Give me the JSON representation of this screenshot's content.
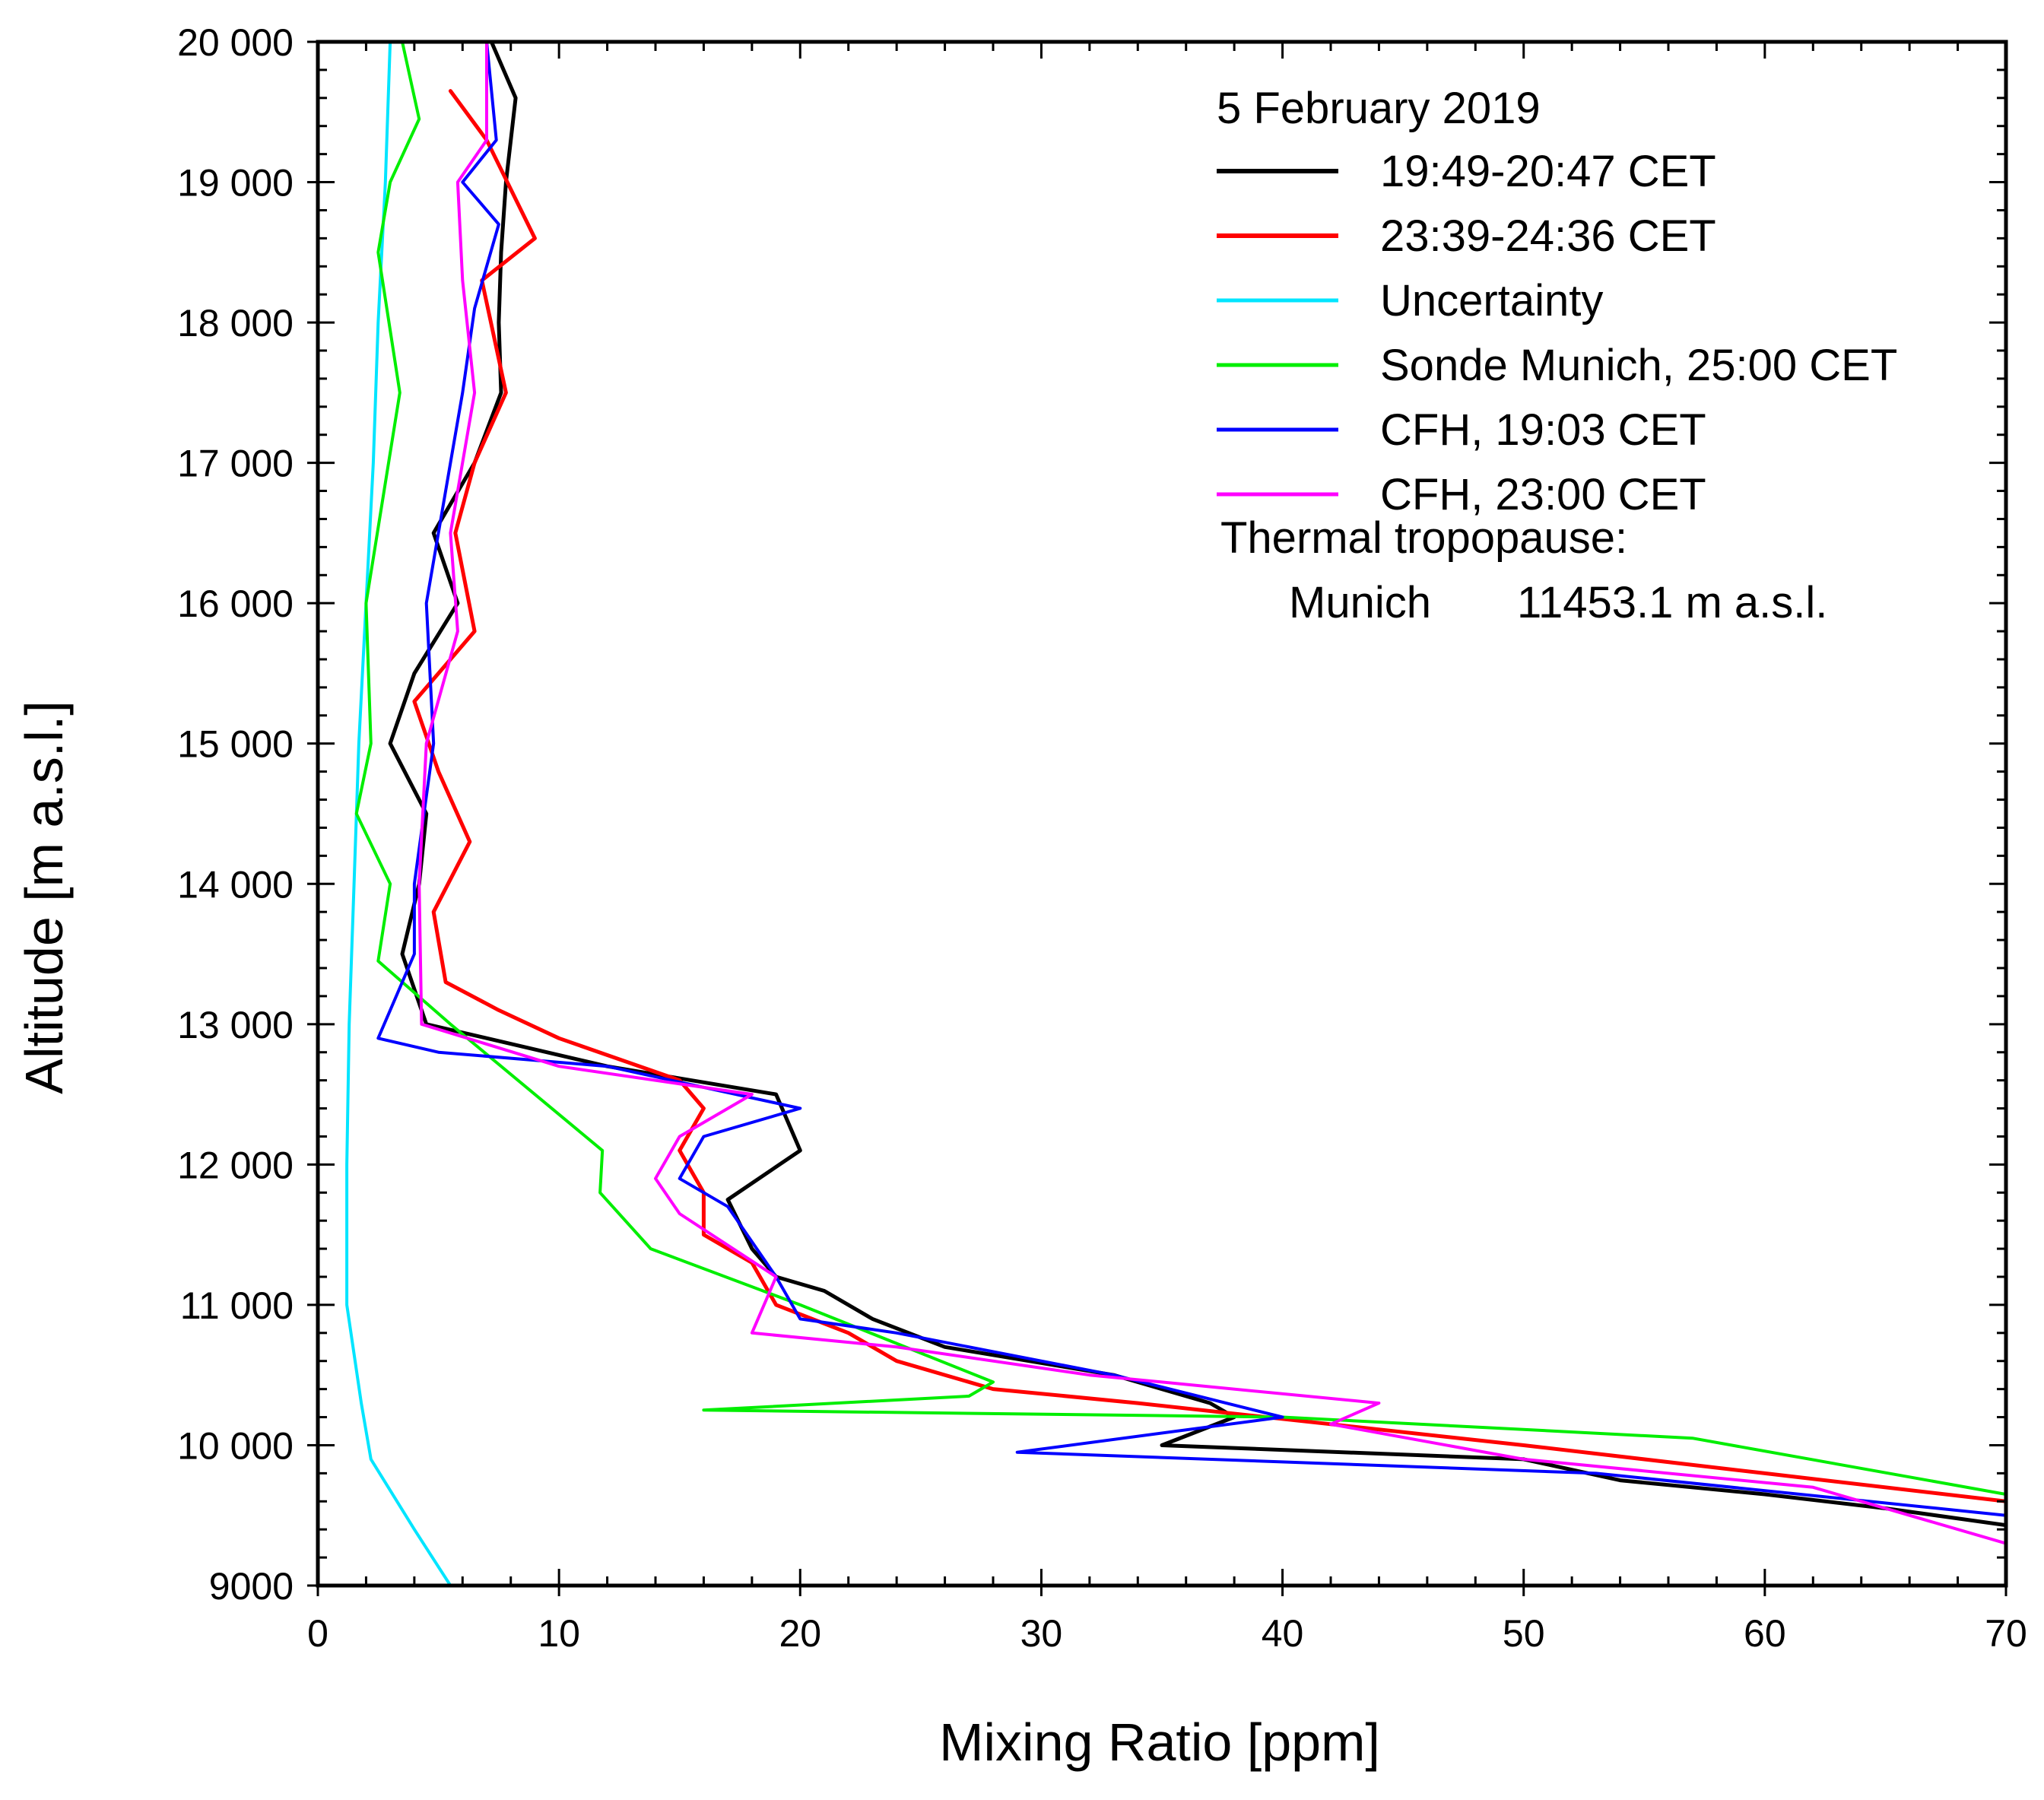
{
  "chart_data": {
    "type": "line",
    "xlabel": "Mixing Ratio [ppm]",
    "ylabel": "Altitude [m a.s.l.]",
    "xlim": [
      0,
      70
    ],
    "ylim": [
      9000,
      20000
    ],
    "x_ticks": [
      "0",
      "10",
      "20",
      "30",
      "40",
      "50",
      "60",
      "70"
    ],
    "y_ticks": [
      "9000",
      "10 000",
      "11 000",
      "12 000",
      "13 000",
      "14 000",
      "15 000",
      "16 000",
      "17 000",
      "18 000",
      "19 000",
      "20 000"
    ],
    "grid": false,
    "legend_position": "top-right",
    "legend_title": "5 February 2019",
    "annotation_title": "Thermal tropopause:",
    "annotation_site": "Munich",
    "annotation_value": "11453.1 m a.s.l.",
    "series": [
      {
        "name": "19:49-20:47 CET",
        "color": "#000000",
        "width": 5,
        "points": [
          [
            7.2,
            20000
          ],
          [
            8.2,
            19600
          ],
          [
            7.8,
            19000
          ],
          [
            7.6,
            18500
          ],
          [
            7.5,
            18000
          ],
          [
            7.6,
            17500
          ],
          [
            6.5,
            17000
          ],
          [
            4.8,
            16500
          ],
          [
            5.8,
            16000
          ],
          [
            4.0,
            15500
          ],
          [
            3.0,
            15000
          ],
          [
            4.5,
            14500
          ],
          [
            4.2,
            14000
          ],
          [
            3.5,
            13500
          ],
          [
            4.5,
            13000
          ],
          [
            12,
            12700
          ],
          [
            19,
            12500
          ],
          [
            20,
            12100
          ],
          [
            17,
            11750
          ],
          [
            18,
            11400
          ],
          [
            19,
            11200
          ],
          [
            21,
            11100
          ],
          [
            23,
            10900
          ],
          [
            26,
            10700
          ],
          [
            33,
            10500
          ],
          [
            37,
            10300
          ],
          [
            38,
            10200
          ],
          [
            35,
            10000
          ],
          [
            50,
            9900
          ],
          [
            54,
            9750
          ],
          [
            60,
            9650
          ],
          [
            65,
            9550
          ],
          [
            70,
            9430
          ]
        ]
      },
      {
        "name": "23:39-24:36 CET",
        "color": "#ff0000",
        "width": 5,
        "points": [
          [
            5.5,
            19650
          ],
          [
            7.0,
            19300
          ],
          [
            9.0,
            18600
          ],
          [
            6.8,
            18300
          ],
          [
            7.8,
            17500
          ],
          [
            6.5,
            17000
          ],
          [
            5.7,
            16500
          ],
          [
            6.5,
            15800
          ],
          [
            4.0,
            15300
          ],
          [
            5.0,
            14800
          ],
          [
            6.3,
            14300
          ],
          [
            4.8,
            13800
          ],
          [
            5.3,
            13300
          ],
          [
            7.5,
            13100
          ],
          [
            10,
            12900
          ],
          [
            15,
            12600
          ],
          [
            16,
            12400
          ],
          [
            15,
            12100
          ],
          [
            16,
            11800
          ],
          [
            16,
            11500
          ],
          [
            18,
            11300
          ],
          [
            19,
            11000
          ],
          [
            22,
            10800
          ],
          [
            24,
            10600
          ],
          [
            28,
            10400
          ],
          [
            34,
            10300
          ],
          [
            42,
            10150
          ],
          [
            50,
            10000
          ],
          [
            60,
            9800
          ],
          [
            70,
            9600
          ]
        ]
      },
      {
        "name": "Uncertainty",
        "color": "#00e5ff",
        "width": 4,
        "points": [
          [
            3.0,
            20000
          ],
          [
            2.8,
            19000
          ],
          [
            2.5,
            18000
          ],
          [
            2.3,
            17000
          ],
          [
            2.0,
            16000
          ],
          [
            1.7,
            15000
          ],
          [
            1.5,
            14000
          ],
          [
            1.3,
            13000
          ],
          [
            1.2,
            12000
          ],
          [
            1.2,
            11000
          ],
          [
            1.8,
            10300
          ],
          [
            2.2,
            9900
          ],
          [
            4.0,
            9400
          ],
          [
            5.5,
            9000
          ]
        ]
      },
      {
        "name": "Sonde Munich, 25:00 CET",
        "color": "#00ee00",
        "width": 4,
        "points": [
          [
            3.5,
            20000
          ],
          [
            4.2,
            19450
          ],
          [
            3.0,
            19000
          ],
          [
            2.5,
            18500
          ],
          [
            3.4,
            17500
          ],
          [
            2.0,
            16000
          ],
          [
            2.2,
            15000
          ],
          [
            1.6,
            14500
          ],
          [
            3.0,
            14000
          ],
          [
            2.5,
            13450
          ],
          [
            5.5,
            13000
          ],
          [
            11.8,
            12100
          ],
          [
            11.7,
            11800
          ],
          [
            13.8,
            11400
          ],
          [
            20,
            11000
          ],
          [
            28,
            10450
          ],
          [
            27,
            10350
          ],
          [
            16,
            10250
          ],
          [
            40,
            10200
          ],
          [
            57,
            10050
          ],
          [
            70,
            9650
          ]
        ]
      },
      {
        "name": "CFH, 19:03 CET",
        "color": "#0000ff",
        "width": 4,
        "points": [
          [
            7.0,
            20000
          ],
          [
            7.4,
            19300
          ],
          [
            6.0,
            19000
          ],
          [
            7.5,
            18700
          ],
          [
            6.5,
            18100
          ],
          [
            6.0,
            17500
          ],
          [
            5.5,
            17000
          ],
          [
            4.5,
            16000
          ],
          [
            4.8,
            15000
          ],
          [
            4.0,
            14000
          ],
          [
            4.0,
            13500
          ],
          [
            2.5,
            12900
          ],
          [
            5.0,
            12800
          ],
          [
            12,
            12700
          ],
          [
            20,
            12400
          ],
          [
            16,
            12200
          ],
          [
            15,
            11900
          ],
          [
            17,
            11700
          ],
          [
            19,
            11200
          ],
          [
            20,
            10900
          ],
          [
            24,
            10800
          ],
          [
            33,
            10500
          ],
          [
            40,
            10200
          ],
          [
            29,
            9950
          ],
          [
            53,
            9800
          ],
          [
            70,
            9500
          ]
        ]
      },
      {
        "name": "CFH, 23:00 CET",
        "color": "#ff00ff",
        "width": 4,
        "points": [
          [
            7.0,
            20000
          ],
          [
            7.0,
            19300
          ],
          [
            5.8,
            19000
          ],
          [
            6.0,
            18300
          ],
          [
            6.5,
            17500
          ],
          [
            5.5,
            16500
          ],
          [
            5.8,
            15800
          ],
          [
            4.5,
            15000
          ],
          [
            4.2,
            14000
          ],
          [
            4.3,
            13000
          ],
          [
            10,
            12700
          ],
          [
            18,
            12500
          ],
          [
            15,
            12200
          ],
          [
            14,
            11900
          ],
          [
            15,
            11650
          ],
          [
            19,
            11200
          ],
          [
            18,
            10800
          ],
          [
            24,
            10700
          ],
          [
            32,
            10500
          ],
          [
            44,
            10300
          ],
          [
            42,
            10150
          ],
          [
            50,
            9900
          ],
          [
            62,
            9700
          ],
          [
            70,
            9300
          ]
        ]
      }
    ]
  }
}
